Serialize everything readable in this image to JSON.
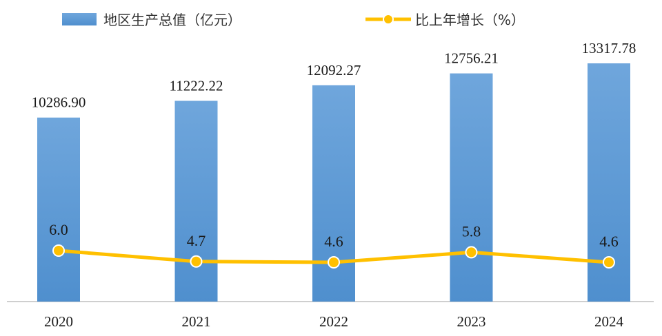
{
  "chart_data": {
    "type": "bar",
    "categories": [
      "2020",
      "2021",
      "2022",
      "2023",
      "2024"
    ],
    "series": [
      {
        "name": "地区生产总值（亿元）",
        "type": "bar",
        "values": [
          10286.9,
          11222.22,
          12092.27,
          12756.21,
          13317.78
        ],
        "labels": [
          "10286.90",
          "11222.22",
          "12092.27",
          "12756.21",
          "13317.78"
        ],
        "color": "#5B9BD5"
      },
      {
        "name": "比上年增长（%）",
        "type": "line",
        "values": [
          6.0,
          4.7,
          4.6,
          5.8,
          4.6
        ],
        "labels": [
          "6.0",
          "4.7",
          "4.6",
          "5.8",
          "4.6"
        ],
        "color": "#FFC000"
      }
    ],
    "legend_position": "top",
    "grid": false
  }
}
